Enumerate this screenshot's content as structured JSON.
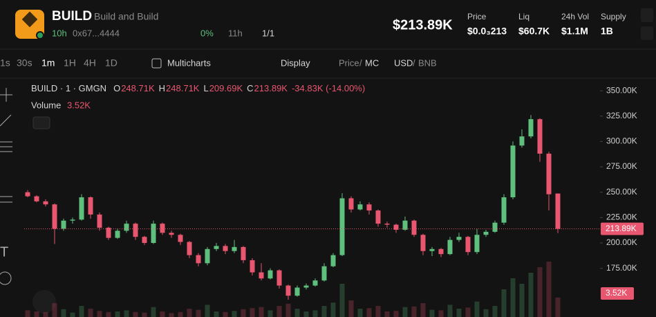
{
  "header": {
    "symbol": "BUILD",
    "name": "Build and Build",
    "age": "10h",
    "address": "0x67...4444",
    "holders_pct": "0%",
    "time": "11h",
    "ratio": "1/1",
    "market_cap": "$213.89K",
    "stats": [
      {
        "label": "Price",
        "value": "$0.0₃213"
      },
      {
        "label": "Liq",
        "value": "$60.7K"
      },
      {
        "label": "24h Vol",
        "value": "$1.1M"
      },
      {
        "label": "Supply",
        "value": "1B"
      }
    ]
  },
  "toolbar": {
    "intervals": [
      "1s",
      "30s",
      "1m",
      "1H",
      "4H",
      "1D"
    ],
    "active_interval_index": 2,
    "multicharts": "Multicharts",
    "display": "Display",
    "price": "Price",
    "mc": "MC",
    "usd": "USD",
    "bnb": "BNB",
    "slash": "/"
  },
  "chart_data": {
    "type": "candlestick",
    "title": "BUILD · 1 · GMGN",
    "legend": [
      {
        "key": "O",
        "value": "248.71K"
      },
      {
        "key": "H",
        "value": "248.71K"
      },
      {
        "key": "L",
        "value": "209.69K"
      },
      {
        "key": "C",
        "value": "213.89K"
      }
    ],
    "change": "-34.83K (-14.00%)",
    "volume_title": "Volume",
    "volume_label": "3.52K",
    "up_color": "#5fbf7d",
    "down_color": "#e8566f",
    "ylim": [
      127,
      361
    ],
    "yticks": [
      {
        "value": 350,
        "label": "350.00K"
      },
      {
        "value": 325,
        "label": "325.00K"
      },
      {
        "value": 300,
        "label": "300.00K"
      },
      {
        "value": 275,
        "label": "275.00K"
      },
      {
        "value": 250,
        "label": "250.00K"
      },
      {
        "value": 225,
        "label": "225.00K"
      },
      {
        "value": 200,
        "label": "200.00K"
      },
      {
        "value": 175,
        "label": "175.00K"
      }
    ],
    "last_price": {
      "value": 213.89,
      "label": "213.89K"
    },
    "candles": [
      [
        250,
        252,
        245,
        246
      ],
      [
        246,
        247,
        240,
        241
      ],
      [
        241,
        243,
        236,
        238
      ],
      [
        238,
        239,
        199,
        214
      ],
      [
        214,
        224,
        212,
        222
      ],
      [
        222,
        225,
        219,
        223
      ],
      [
        223,
        248,
        222,
        245
      ],
      [
        245,
        246,
        224,
        228
      ],
      [
        228,
        230,
        212,
        215
      ],
      [
        215,
        216,
        203,
        205
      ],
      [
        205,
        214,
        204,
        212
      ],
      [
        212,
        222,
        210,
        219
      ],
      [
        219,
        220,
        203,
        206
      ],
      [
        206,
        207,
        198,
        200
      ],
      [
        200,
        222,
        199,
        219
      ],
      [
        219,
        220,
        208,
        210
      ],
      [
        210,
        212,
        205,
        208
      ],
      [
        208,
        209,
        198,
        201
      ],
      [
        201,
        202,
        185,
        188
      ],
      [
        188,
        190,
        177,
        180
      ],
      [
        180,
        196,
        178,
        194
      ],
      [
        194,
        200,
        192,
        197
      ],
      [
        197,
        199,
        189,
        192
      ],
      [
        192,
        203,
        190,
        196
      ],
      [
        196,
        197,
        180,
        183
      ],
      [
        183,
        185,
        168,
        171
      ],
      [
        171,
        180,
        163,
        165
      ],
      [
        165,
        175,
        164,
        173
      ],
      [
        173,
        174,
        155,
        158
      ],
      [
        158,
        159,
        144,
        148
      ],
      [
        148,
        158,
        147,
        156
      ],
      [
        156,
        160,
        154,
        158
      ],
      [
        158,
        165,
        157,
        163
      ],
      [
        163,
        180,
        162,
        177
      ],
      [
        177,
        190,
        176,
        188
      ],
      [
        188,
        249,
        187,
        244
      ],
      [
        244,
        246,
        230,
        233
      ],
      [
        233,
        241,
        232,
        238
      ],
      [
        238,
        240,
        228,
        232
      ],
      [
        232,
        233,
        216,
        219
      ],
      [
        219,
        221,
        215,
        218
      ],
      [
        218,
        219,
        210,
        213
      ],
      [
        213,
        226,
        212,
        222
      ],
      [
        222,
        223,
        206,
        208
      ],
      [
        208,
        209,
        188,
        192
      ],
      [
        192,
        196,
        187,
        194
      ],
      [
        194,
        195,
        186,
        189
      ],
      [
        189,
        206,
        188,
        203
      ],
      [
        203,
        210,
        201,
        206
      ],
      [
        206,
        207,
        188,
        191
      ],
      [
        191,
        214,
        189,
        208
      ],
      [
        208,
        213,
        206,
        211
      ],
      [
        211,
        222,
        210,
        220
      ],
      [
        220,
        248,
        218,
        245
      ],
      [
        245,
        300,
        243,
        296
      ],
      [
        296,
        312,
        294,
        305
      ],
      [
        305,
        326,
        303,
        322
      ],
      [
        322,
        323,
        280,
        288
      ],
      [
        288,
        290,
        232,
        248
      ],
      [
        248.71,
        248.71,
        209.69,
        213.89
      ]
    ],
    "volumes": [
      1.2,
      1.0,
      0.9,
      2.5,
      1.4,
      0.8,
      2.0,
      1.5,
      1.1,
      0.9,
      1.0,
      1.2,
      0.9,
      0.8,
      1.8,
      1.0,
      0.7,
      0.9,
      1.5,
      1.3,
      2.2,
      1.0,
      0.9,
      1.1,
      1.4,
      1.6,
      1.8,
      1.2,
      2.0,
      2.4,
      1.5,
      1.0,
      1.2,
      2.0,
      2.6,
      6.0,
      3.0,
      1.5,
      1.6,
      2.0,
      1.0,
      1.1,
      1.8,
      1.9,
      2.5,
      1.3,
      1.2,
      2.2,
      1.5,
      1.7,
      2.8,
      1.4,
      2.0,
      5.0,
      7.0,
      6.0,
      8.0,
      9.0,
      10.0,
      3.52
    ]
  }
}
